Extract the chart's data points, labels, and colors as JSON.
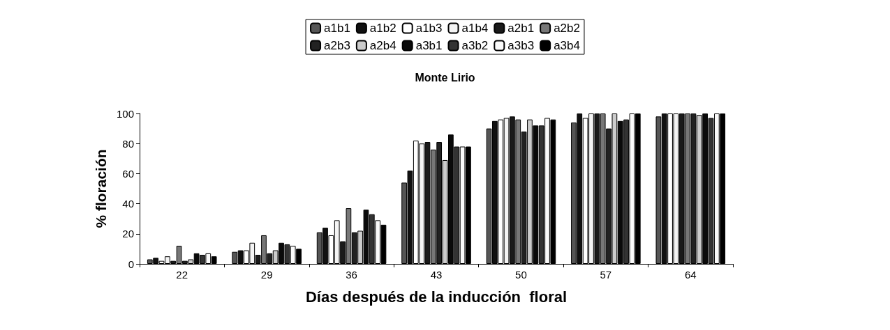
{
  "chart_data": {
    "type": "bar",
    "title": "Monte Lirio",
    "xlabel": "Días después de la inducción  floral",
    "ylabel": "% floración",
    "categories": [
      "22",
      "29",
      "36",
      "43",
      "50",
      "57",
      "64"
    ],
    "ylim": [
      0,
      100
    ],
    "yticks": [
      0,
      20,
      40,
      60,
      80,
      100
    ],
    "grid": false,
    "legend": "top",
    "series": [
      {
        "name": "a1b1",
        "color": "#555555",
        "values": [
          3,
          8,
          21,
          54,
          90,
          94,
          98
        ]
      },
      {
        "name": "a1b2",
        "color": "#111111",
        "values": [
          4,
          9,
          24,
          62,
          95,
          100,
          100
        ]
      },
      {
        "name": "a1b3",
        "color": "#ffffff",
        "values": [
          2,
          9,
          19,
          82,
          96,
          97,
          100
        ]
      },
      {
        "name": "a1b4",
        "color": "#f4f4f4",
        "values": [
          5,
          14,
          29,
          80,
          97,
          100,
          100
        ]
      },
      {
        "name": "a2b1",
        "color": "#1a1a1a",
        "values": [
          2,
          6,
          15,
          81,
          98,
          100,
          100
        ]
      },
      {
        "name": "a2b2",
        "color": "#777777",
        "values": [
          12,
          19,
          37,
          76,
          96,
          100,
          100
        ]
      },
      {
        "name": "a2b3",
        "color": "#222222",
        "values": [
          2,
          7,
          21,
          81,
          88,
          90,
          100
        ]
      },
      {
        "name": "a2b4",
        "color": "#cccccc",
        "values": [
          3,
          9,
          22,
          69,
          96,
          100,
          99
        ]
      },
      {
        "name": "a3b1",
        "color": "#0a0a0a",
        "values": [
          7,
          14,
          36,
          86,
          92,
          95,
          100
        ]
      },
      {
        "name": "a3b2",
        "color": "#333333",
        "values": [
          6,
          13,
          33,
          78,
          92,
          96,
          97
        ]
      },
      {
        "name": "a3b3",
        "color": "#fafafa",
        "values": [
          7,
          12,
          29,
          78,
          97,
          100,
          100
        ]
      },
      {
        "name": "a3b4",
        "color": "#000000",
        "values": [
          5,
          10,
          26,
          78,
          96,
          100,
          100
        ]
      }
    ]
  }
}
